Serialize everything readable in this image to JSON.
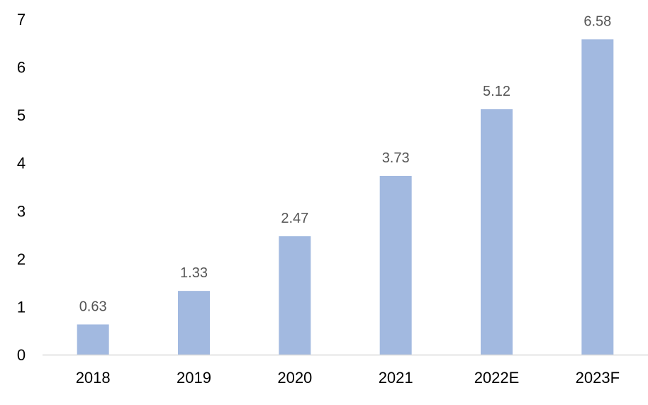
{
  "chart_data": {
    "type": "bar",
    "categories": [
      "2018",
      "2019",
      "2020",
      "2021",
      "2022E",
      "2023F"
    ],
    "values": [
      0.63,
      1.33,
      2.47,
      3.73,
      5.12,
      6.58
    ],
    "data_labels": [
      "0.63",
      "1.33",
      "2.47",
      "3.73",
      "5.12",
      "6.58"
    ],
    "y_ticks": [
      "0",
      "1",
      "2",
      "3",
      "4",
      "5",
      "6",
      "7"
    ],
    "ylim": [
      0,
      7
    ],
    "grid": false,
    "legend": "none",
    "bar_color": "#A2B9E0",
    "axis_color": "#D9D9D9"
  }
}
